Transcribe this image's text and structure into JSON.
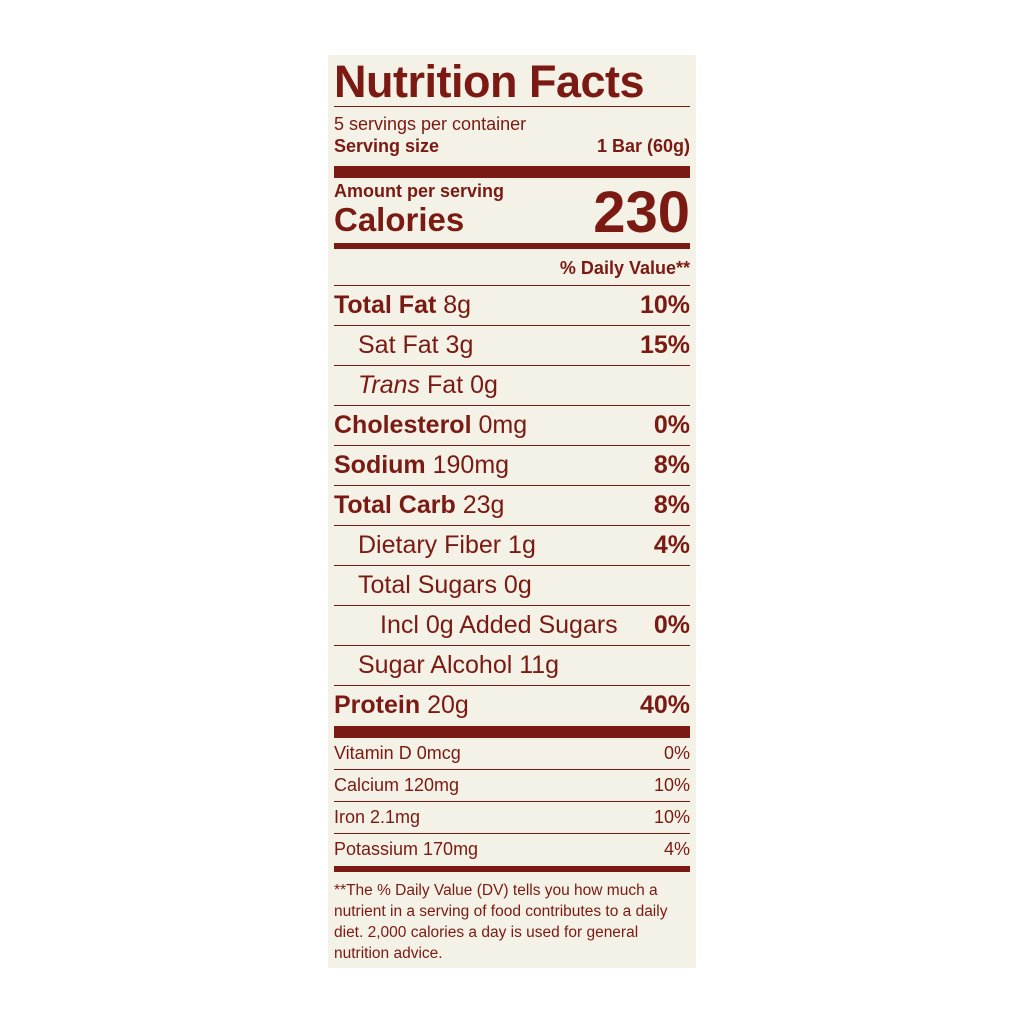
{
  "title": "Nutrition Facts",
  "servings": "5 servings per container",
  "serving_size": {
    "label": "Serving size",
    "value": "1 Bar (60g)"
  },
  "amount_per_serving": "Amount per serving",
  "calories": {
    "label": "Calories",
    "value": "230"
  },
  "daily_value_header": "% Daily Value**",
  "nutrients": [
    {
      "name": "Total Fat",
      "amount": "8g",
      "dv": "10%"
    },
    {
      "name": "Sat Fat 3g",
      "dv": "15%"
    },
    {
      "prefix": "Trans",
      "name": "Fat 0g"
    },
    {
      "name": "Cholesterol",
      "amount": "0mg",
      "dv": "0%"
    },
    {
      "name": "Sodium",
      "amount": "190mg",
      "dv": "8%"
    },
    {
      "name": "Total Carb",
      "amount": "23g",
      "dv": "8%"
    },
    {
      "name": "Dietary Fiber 1g",
      "dv": "4%"
    },
    {
      "name": "Total Sugars 0g"
    },
    {
      "name": "Incl 0g Added Sugars",
      "dv": "0%"
    },
    {
      "name": "Sugar Alcohol 11g"
    },
    {
      "name": "Protein",
      "amount": "20g",
      "dv": "40%"
    }
  ],
  "vitamins": [
    {
      "name": "Vitamin D 0mcg",
      "dv": "0%"
    },
    {
      "name": "Calcium 120mg",
      "dv": "10%"
    },
    {
      "name": "Iron 2.1mg",
      "dv": "10%"
    },
    {
      "name": "Potassium 170mg",
      "dv": "4%"
    }
  ],
  "footnote": "**The % Daily Value (DV) tells you how much a nutrient in a serving of food contributes to a daily diet. 2,000 calories a day is used for general nutrition advice."
}
